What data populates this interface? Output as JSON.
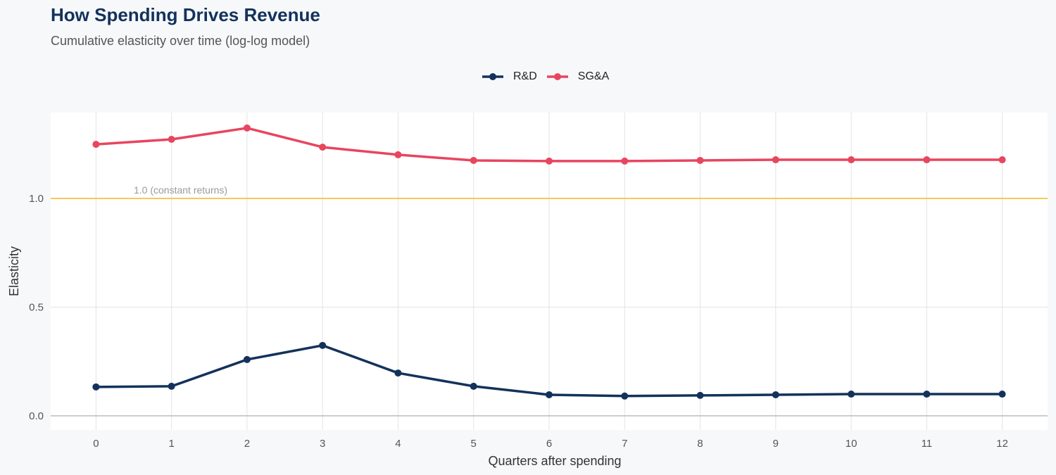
{
  "chart_data": {
    "type": "line",
    "title": "How Spending Drives Revenue",
    "subtitle": "Cumulative elasticity over time (log-log model)",
    "xlabel": "Quarters after spending",
    "ylabel": "Elasticity",
    "x": [
      0,
      1,
      2,
      3,
      4,
      5,
      6,
      7,
      8,
      9,
      10,
      11,
      12
    ],
    "xlim": [
      -0.6,
      12.6
    ],
    "ylim": [
      -0.065,
      1.395
    ],
    "yticks": [
      0.0,
      0.5,
      1.0
    ],
    "ytick_labels": [
      "0.0",
      "0.5",
      "1.0"
    ],
    "xtick_labels": [
      "0",
      "1",
      "2",
      "3",
      "4",
      "5",
      "6",
      "7",
      "8",
      "9",
      "10",
      "11",
      "12"
    ],
    "grid": true,
    "legend_position": "top",
    "reference_line": {
      "y": 1.0,
      "label": "1.0 (constant returns)",
      "color": "#f5c85a"
    },
    "series": [
      {
        "name": "R&D",
        "color": "#13325b",
        "values": [
          0.133,
          0.136,
          0.259,
          0.324,
          0.197,
          0.136,
          0.097,
          0.091,
          0.094,
          0.097,
          0.1,
          0.1,
          0.1
        ]
      },
      {
        "name": "SG&A",
        "color": "#e8455f",
        "values": [
          1.249,
          1.272,
          1.324,
          1.236,
          1.201,
          1.175,
          1.172,
          1.172,
          1.175,
          1.178,
          1.178,
          1.178,
          1.178
        ]
      }
    ]
  }
}
